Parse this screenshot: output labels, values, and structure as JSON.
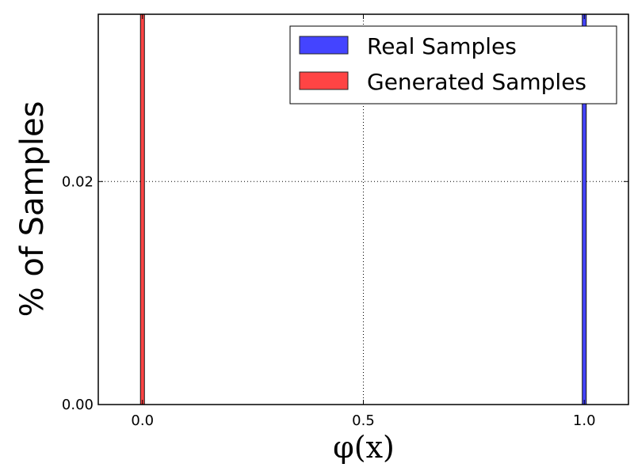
{
  "chart_data": {
    "type": "bar",
    "title": "",
    "xlabel": "φ(x)",
    "ylabel": "% of Samples",
    "xlim": [
      -0.1,
      1.1
    ],
    "ylim": [
      0.0,
      0.035
    ],
    "x_ticks": [
      0.0,
      0.5,
      1.0
    ],
    "x_tick_labels": [
      "0.0",
      "0.5",
      "1.0"
    ],
    "y_ticks": [
      0.0,
      0.02
    ],
    "y_tick_labels": [
      "0.00",
      "0.02"
    ],
    "grid": true,
    "legend_position": "top-right",
    "series": [
      {
        "name": "Real Samples",
        "color": "#4444ff",
        "x": [
          1.0
        ],
        "values": [
          0.035
        ]
      },
      {
        "name": "Generated Samples",
        "color": "#ff4444",
        "x": [
          0.0
        ],
        "values": [
          0.035
        ]
      }
    ]
  }
}
